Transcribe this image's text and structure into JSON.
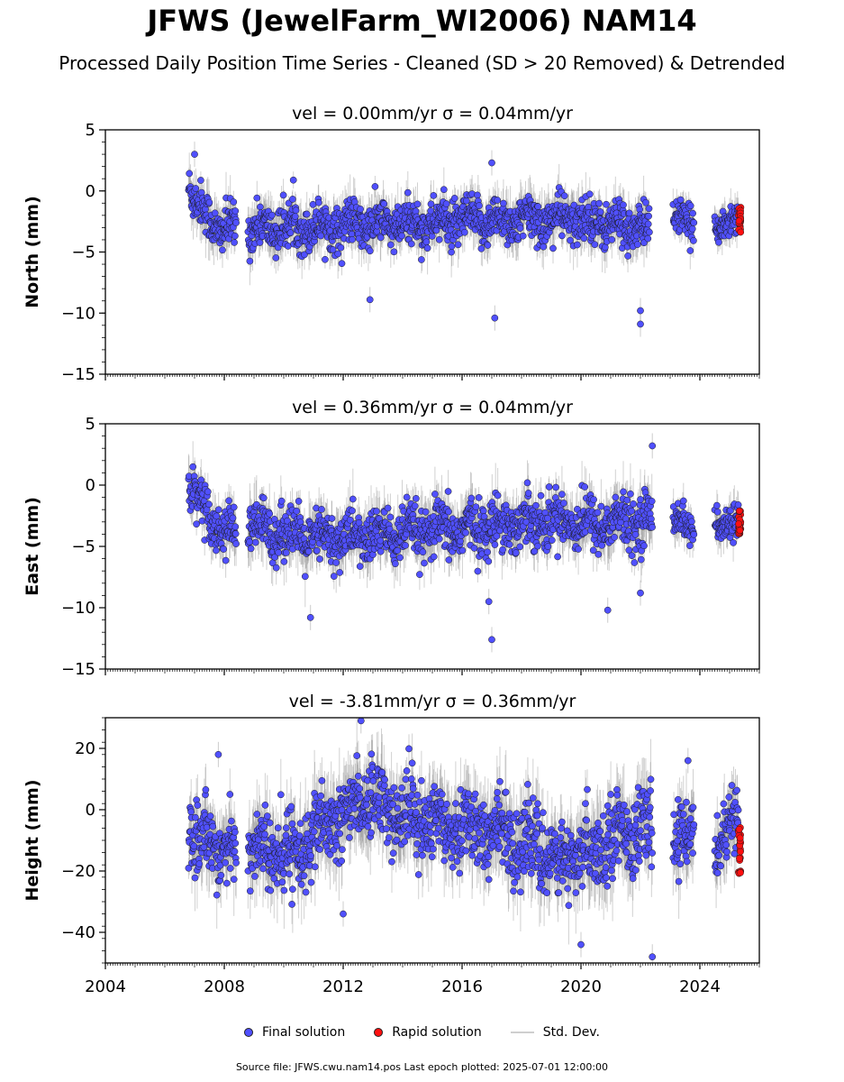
{
  "title": "JFWS (JewelFarm_WI2006) NAM14",
  "subtitle": "Processed Daily Position Time Series - Cleaned (SD > 20 Removed) & Detrended",
  "source_note": "Source file: JFWS.cwu.nam14.pos  Last epoch plotted: 2025-07-01 12:00:00",
  "legend": {
    "final_label": "Final solution",
    "rapid_label": "Rapid solution",
    "std_label": "Std. Dev."
  },
  "colors": {
    "final": "#5050ff",
    "rapid": "#ff1010",
    "std": "#c8c8c8",
    "edge": "#1a1a1a"
  },
  "chart_data": [
    {
      "type": "scatter",
      "panel": "north",
      "title": "vel = 0.00mm/yr   σ = 0.04mm/yr",
      "ylabel": "North (mm)",
      "xlim": [
        2004,
        2026
      ],
      "ylim": [
        -15,
        5
      ],
      "yticks": [
        5,
        0,
        -5,
        -10,
        -15
      ],
      "xticks": [
        2004,
        2008,
        2012,
        2016,
        2020,
        2024
      ],
      "show_x_tick_labels": false,
      "segments": [
        {
          "x": [
            2006.8,
            2007.0,
            2007.4,
            2007.8,
            2008.2,
            2008.4
          ],
          "y": [
            0.8,
            -0.8,
            -2.0,
            -3.0,
            -3.2,
            -3.0
          ],
          "spread": 1.2
        },
        {
          "x": [
            2008.8,
            2010.0,
            2012.0,
            2014.0,
            2016.0,
            2018.0,
            2019.5,
            2020.5,
            2021.5,
            2022.3
          ],
          "y": [
            -3.2,
            -3.0,
            -2.8,
            -2.8,
            -2.5,
            -2.4,
            -2.3,
            -2.5,
            -2.9,
            -3.0
          ],
          "spread": 1.2
        },
        {
          "x": [
            2023.1,
            2023.8
          ],
          "y": [
            -2.3,
            -2.6
          ],
          "spread": 0.9
        },
        {
          "x": [
            2024.5,
            2025.3
          ],
          "y": [
            -2.6,
            -2.4
          ],
          "spread": 0.9
        }
      ],
      "rapid": {
        "x": [
          2025.25,
          2025.5
        ],
        "y": [
          -3.5,
          -1.2
        ]
      },
      "outliers": [
        {
          "x": 2012.9,
          "y": -8.9
        },
        {
          "x": 2017.1,
          "y": -10.4
        },
        {
          "x": 2022.0,
          "y": -10.9
        },
        {
          "x": 2022.0,
          "y": -9.8
        },
        {
          "x": 2017.0,
          "y": 2.3
        },
        {
          "x": 2007.0,
          "y": 3.0
        }
      ]
    },
    {
      "type": "scatter",
      "panel": "east",
      "title": "vel = 0.36mm/yr   σ = 0.04mm/yr",
      "ylabel": "East (mm)",
      "xlim": [
        2004,
        2026
      ],
      "ylim": [
        -15,
        5
      ],
      "yticks": [
        5,
        0,
        -5,
        -10,
        -15
      ],
      "xticks": [
        2004,
        2008,
        2012,
        2016,
        2020,
        2024
      ],
      "show_x_tick_labels": false,
      "segments": [
        {
          "x": [
            2006.8,
            2007.1,
            2007.5,
            2007.9,
            2008.4
          ],
          "y": [
            0.5,
            -1.0,
            -2.5,
            -3.5,
            -4.0
          ],
          "spread": 1.2
        },
        {
          "x": [
            2008.8,
            2010.0,
            2011.0,
            2012.0,
            2014.0,
            2016.0,
            2018.0,
            2019.5,
            2020.5,
            2021.5,
            2022.4
          ],
          "y": [
            -3.5,
            -3.8,
            -4.5,
            -4.3,
            -4.0,
            -3.6,
            -3.0,
            -2.8,
            -3.2,
            -3.0,
            -3.0
          ],
          "spread": 1.4
        },
        {
          "x": [
            2023.1,
            2023.8
          ],
          "y": [
            -2.8,
            -3.3
          ],
          "spread": 0.9
        },
        {
          "x": [
            2024.5,
            2025.3
          ],
          "y": [
            -3.3,
            -3.0
          ],
          "spread": 0.9
        }
      ],
      "rapid": {
        "x": [
          2025.25,
          2025.5
        ],
        "y": [
          -4.0,
          -2.0
        ]
      },
      "outliers": [
        {
          "x": 2010.9,
          "y": -10.8
        },
        {
          "x": 2017.0,
          "y": -12.6
        },
        {
          "x": 2020.9,
          "y": -10.2
        },
        {
          "x": 2022.4,
          "y": 3.2
        },
        {
          "x": 2022.0,
          "y": -8.8
        },
        {
          "x": 2016.9,
          "y": -9.5
        }
      ]
    },
    {
      "type": "scatter",
      "panel": "height",
      "title": "vel = -3.81mm/yr   σ = 0.36mm/yr",
      "ylabel": "Height (mm)",
      "xlim": [
        2004,
        2026
      ],
      "ylim": [
        -50,
        30
      ],
      "yticks": [
        20,
        0,
        -20,
        -40
      ],
      "xticks": [
        2004,
        2008,
        2012,
        2016,
        2020,
        2024
      ],
      "show_x_tick_labels": true,
      "segments": [
        {
          "x": [
            2006.8,
            2007.2,
            2007.6,
            2008.0,
            2008.4
          ],
          "y": [
            -6,
            -12,
            -8,
            -14,
            -16
          ],
          "spread": 7
        },
        {
          "x": [
            2008.8,
            2010.0,
            2011.0,
            2012.0,
            2012.7,
            2014.0,
            2016.0,
            2018.0,
            2019.5,
            2020.5,
            2021.5,
            2022.4
          ],
          "y": [
            -12,
            -15,
            -10,
            -2,
            5,
            -2,
            -5,
            -10,
            -18,
            -12,
            -6,
            -8
          ],
          "spread": 8
        },
        {
          "x": [
            2023.1,
            2023.8
          ],
          "y": [
            -15,
            -2
          ],
          "spread": 7
        },
        {
          "x": [
            2024.5,
            2025.3
          ],
          "y": [
            -10,
            -4
          ],
          "spread": 7
        }
      ],
      "rapid": {
        "x": [
          2025.25,
          2025.5
        ],
        "y": [
          -21,
          -5
        ]
      },
      "outliers": [
        {
          "x": 2012.6,
          "y": 29
        },
        {
          "x": 2022.4,
          "y": -48
        },
        {
          "x": 2020.0,
          "y": -44
        },
        {
          "x": 2012.0,
          "y": -34
        },
        {
          "x": 2007.8,
          "y": 18
        },
        {
          "x": 2023.6,
          "y": 16
        }
      ]
    }
  ]
}
